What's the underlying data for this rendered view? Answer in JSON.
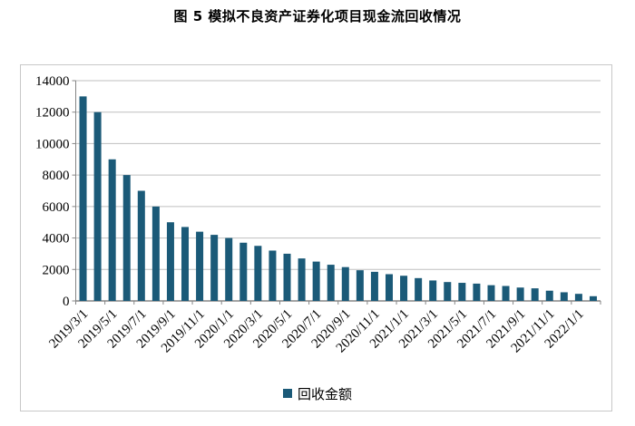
{
  "title": "图 5  模拟不良资产证券化项目现金流回收情况",
  "legend": {
    "label": "回收金额"
  },
  "chart_data": {
    "type": "bar",
    "title": "图 5 模拟不良资产证券化项目现金流回收情况",
    "series_name": "回收金额",
    "categories": [
      "2019/3/1",
      "2019/4/1",
      "2019/5/1",
      "2019/6/1",
      "2019/7/1",
      "2019/8/1",
      "2019/9/1",
      "2019/10/1",
      "2019/11/1",
      "2019/12/1",
      "2020/1/1",
      "2020/2/1",
      "2020/3/1",
      "2020/4/1",
      "2020/5/1",
      "2020/6/1",
      "2020/7/1",
      "2020/8/1",
      "2020/9/1",
      "2020/10/1",
      "2020/11/1",
      "2020/12/1",
      "2021/1/1",
      "2021/2/1",
      "2021/3/1",
      "2021/4/1",
      "2021/5/1",
      "2021/6/1",
      "2021/7/1",
      "2021/8/1",
      "2021/9/1",
      "2021/10/1",
      "2021/11/1",
      "2021/12/1",
      "2022/1/1",
      "2022/2/1"
    ],
    "values": [
      13000,
      12000,
      9000,
      8000,
      7000,
      6000,
      5000,
      4700,
      4400,
      4200,
      4000,
      3700,
      3500,
      3200,
      3000,
      2700,
      2500,
      2300,
      2150,
      1950,
      1850,
      1700,
      1600,
      1450,
      1300,
      1200,
      1150,
      1100,
      1000,
      950,
      850,
      800,
      650,
      550,
      450,
      300
    ],
    "x_tick_labels": [
      "2019/3/1",
      "2019/5/1",
      "2019/7/1",
      "2019/9/1",
      "2019/11/1",
      "2020/1/1",
      "2020/3/1",
      "2020/5/1",
      "2020/7/1",
      "2020/9/1",
      "2020/11/1",
      "2021/1/1",
      "2021/3/1",
      "2021/5/1",
      "2021/7/1",
      "2021/9/1",
      "2021/11/1",
      "2022/1/1"
    ],
    "x_label_interval": 2,
    "ylim": [
      0,
      14000
    ],
    "ytick_step": 2000,
    "grid": true,
    "legend_position": "bottom",
    "bar_color": "#1b5a78",
    "gridline_color": "#bfbfbf",
    "axis_color": "#858585",
    "frame_border_color": "#c8c8c8",
    "label_font_size": 15
  }
}
